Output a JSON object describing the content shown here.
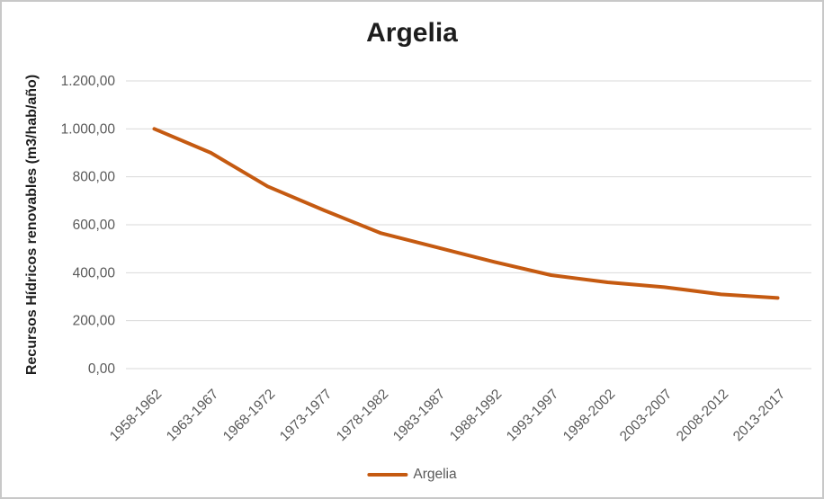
{
  "chart_data": {
    "type": "line",
    "title": "Argelia",
    "ylabel": "Recursos Hídricos renovables (m3/hab/año)",
    "xlabel": "",
    "categories": [
      "1958-1962",
      "1963-1967",
      "1968-1972",
      "1973-1977",
      "1978-1982",
      "1983-1987",
      "1988-1992",
      "1993-1997",
      "1998-2002",
      "2003-2007",
      "2008-2012",
      "2013-2017"
    ],
    "series": [
      {
        "name": "Argelia",
        "color": "#C55A11",
        "values": [
          1000,
          900,
          760,
          660,
          565,
          505,
          445,
          390,
          360,
          340,
          310,
          295
        ]
      }
    ],
    "ylim": [
      0,
      1200
    ],
    "ytick_step": 200,
    "ytick_labels": [
      "0,00",
      "200,00",
      "400,00",
      "600,00",
      "800,00",
      "1.000,00",
      "1.200,00"
    ],
    "grid": true,
    "legend_position": "bottom",
    "legend_entries": [
      "Argelia"
    ]
  },
  "colors": {
    "series_line": "#C55A11",
    "gridline": "#D9D9D9",
    "tick_text": "#595959",
    "title_text": "#1D1D1D",
    "legend_text": "#595959",
    "background": "#FFFFFF",
    "border": "#C8C8C8"
  }
}
